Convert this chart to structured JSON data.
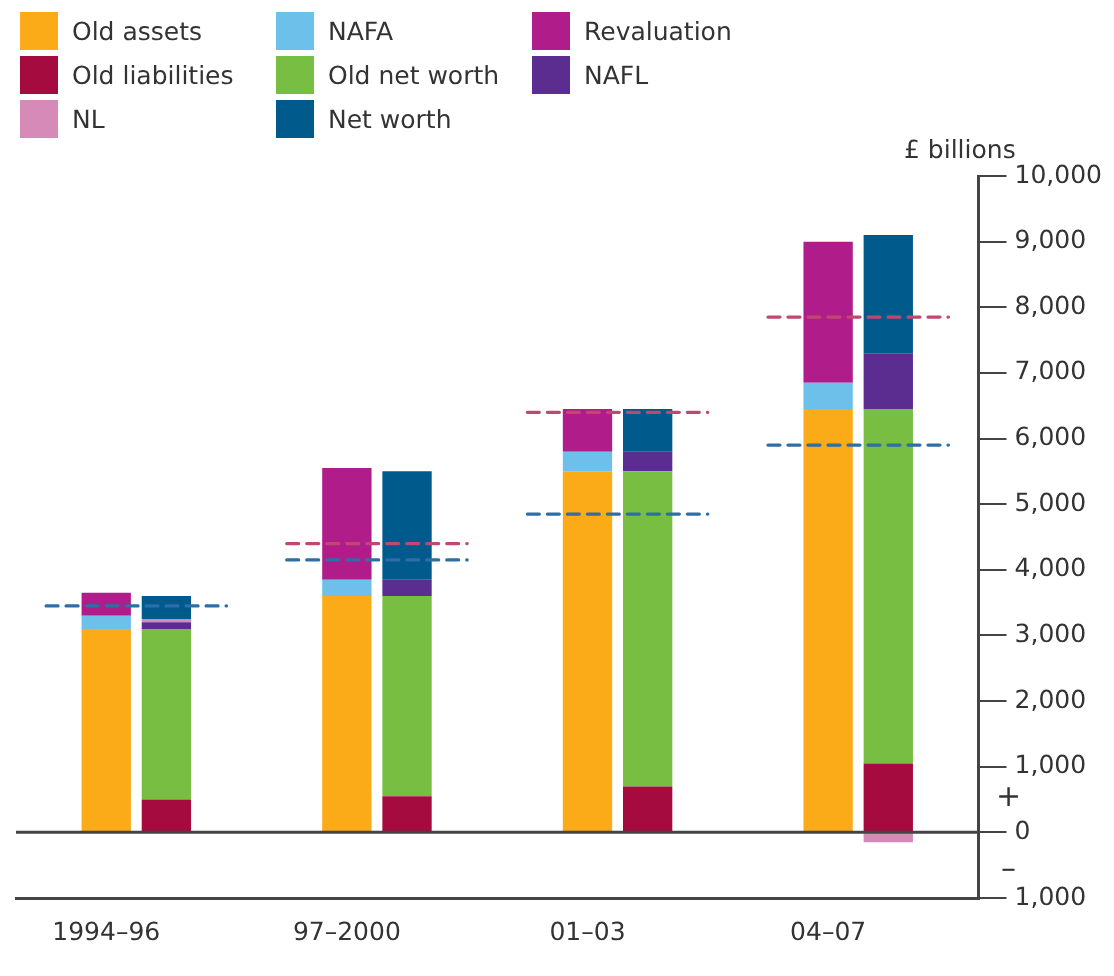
{
  "chart_data": {
    "type": "bar",
    "stacked": true,
    "ylabel": "£ billions",
    "legend": "top left",
    "grid": false,
    "categories": [
      null,
      "1994–96",
      null,
      null,
      null,
      "97–2000",
      null,
      null,
      null,
      "01–03",
      null,
      null,
      null,
      "04–07",
      null,
      null
    ],
    "series": [
      {
        "name": "Old assets",
        "color": "#fbab18",
        "values": [
          null,
          3100,
          null,
          null,
          null,
          3600,
          null,
          null,
          null,
          5500,
          null,
          null,
          null,
          6450,
          null,
          null
        ]
      },
      {
        "name": "NAFA",
        "color": "#6cc0ea",
        "values": [
          null,
          200,
          null,
          null,
          null,
          250,
          null,
          null,
          null,
          300,
          null,
          null,
          null,
          400,
          null,
          null
        ]
      },
      {
        "name": "Revaluation",
        "color": "#b01c8a",
        "values": [
          null,
          350,
          null,
          null,
          null,
          1700,
          null,
          null,
          null,
          650,
          null,
          null,
          null,
          2150,
          null,
          null
        ]
      },
      {
        "name": "Old liabilities",
        "color": "#a50b3f",
        "values": [
          null,
          null,
          500,
          null,
          null,
          null,
          550,
          null,
          null,
          null,
          700,
          null,
          null,
          null,
          1050,
          null
        ]
      },
      {
        "name": "Old net worth",
        "color": "#78be43",
        "values": [
          null,
          null,
          2600,
          null,
          null,
          null,
          3050,
          null,
          null,
          null,
          4800,
          null,
          null,
          null,
          5400,
          null
        ]
      },
      {
        "name": "NAFL",
        "color": "#5b2d90",
        "values": [
          null,
          null,
          100,
          null,
          null,
          null,
          250,
          null,
          null,
          null,
          300,
          null,
          null,
          null,
          850,
          null
        ]
      },
      {
        "name": "NL",
        "color": "#d58ab8",
        "values": [
          null,
          null,
          50,
          null,
          null,
          null,
          null,
          null,
          null,
          null,
          null,
          null,
          null,
          null,
          -150,
          null
        ]
      },
      {
        "name": "Net worth",
        "color": "#005a8c",
        "values": [
          null,
          null,
          350,
          null,
          null,
          null,
          1650,
          null,
          null,
          null,
          650,
          null,
          null,
          null,
          1800,
          null
        ]
      },
      {
        "type": "line",
        "line_style": "dashed",
        "color": "#2e6ea6",
        "values": [
          3450,
          3450,
          3450,
          3450,
          null,
          null,
          null,
          null,
          null,
          null,
          null,
          null,
          null,
          null,
          null,
          null
        ]
      },
      {
        "type": "line",
        "line_style": "dashed",
        "color": "#2e6ea6",
        "values": [
          null,
          null,
          null,
          null,
          4150,
          4150,
          4150,
          4150,
          null,
          null,
          null,
          null,
          null,
          null,
          null,
          null
        ]
      },
      {
        "type": "line",
        "line_style": "dashed",
        "color": "#2e6ea6",
        "values": [
          null,
          null,
          null,
          null,
          null,
          null,
          null,
          null,
          4850,
          4850,
          4850,
          4850,
          null,
          null,
          null,
          null
        ]
      },
      {
        "type": "line",
        "line_style": "dashed",
        "color": "#2e6ea6",
        "values": [
          null,
          null,
          null,
          null,
          null,
          null,
          null,
          null,
          null,
          null,
          null,
          null,
          5900,
          5900,
          5900,
          5900
        ]
      },
      {
        "type": "line",
        "line_style": "dashed",
        "color": "#c0486e",
        "values": [
          null,
          null,
          null,
          null,
          4400,
          4400,
          4400,
          4400,
          null,
          null,
          null,
          null,
          null,
          null,
          null,
          null
        ]
      },
      {
        "type": "line",
        "line_style": "dashed",
        "color": "#c0486e",
        "values": [
          null,
          null,
          null,
          null,
          null,
          null,
          null,
          null,
          6400,
          6400,
          6400,
          6400,
          null,
          null,
          null,
          null
        ]
      },
      {
        "type": "line",
        "line_style": "dashed",
        "color": "#c0486e",
        "values": [
          null,
          null,
          null,
          null,
          null,
          null,
          null,
          null,
          null,
          null,
          null,
          null,
          7850,
          7850,
          7850,
          7850
        ]
      }
    ],
    "ylim": [
      -1000,
      10000
    ],
    "yticks": [
      {
        "value": -1000,
        "label": "1,000"
      },
      0,
      {
        "value": 1000,
        "label": "1,000"
      },
      {
        "value": 2000,
        "label": "2,000"
      },
      {
        "value": 3000,
        "label": "3,000"
      },
      {
        "value": 4000,
        "label": "4,000"
      },
      {
        "value": 5000,
        "label": "5,000"
      },
      {
        "value": 6000,
        "label": "6,000"
      },
      {
        "value": 7000,
        "label": "7,000"
      },
      {
        "value": 8000,
        "label": "8,000"
      },
      {
        "value": 9000,
        "label": "9,000"
      },
      {
        "value": 10000,
        "label": "10,000"
      }
    ],
    "ref_lines": [
      {
        "axis": "y",
        "value": 0,
        "color": "#444444"
      }
    ],
    "annotations": [
      "+",
      "–"
    ]
  }
}
